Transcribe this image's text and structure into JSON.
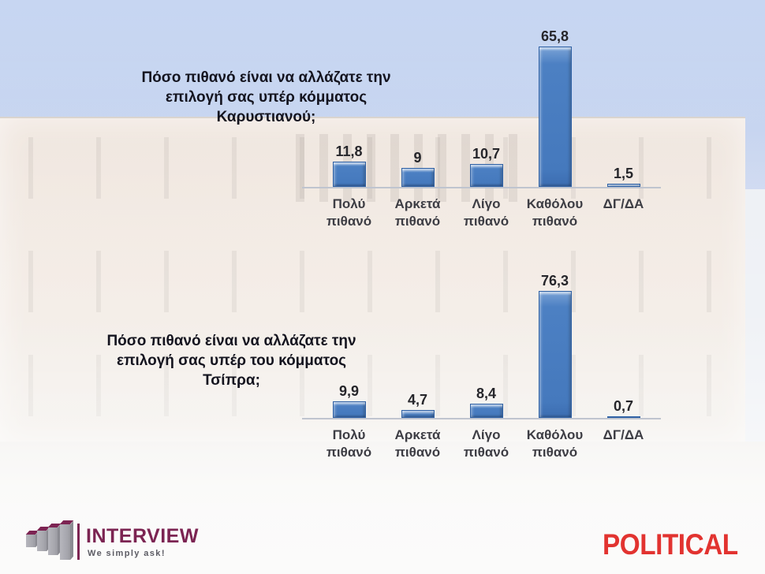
{
  "chart_data": [
    {
      "type": "bar",
      "title": "Πόσο πιθανό είναι να αλλάζατε την\nεπιλογή σας υπέρ κόμματος\nΚαρυστιανού;",
      "categories": [
        "Πολύ πιθανό",
        "Αρκετά πιθανό",
        "Λίγο πιθανό",
        "Καθόλου πιθανό",
        "ΔΓ/ΔΑ"
      ],
      "categories_display": [
        "Πολύ\nπιθανό",
        "Αρκετά\nπιθανό",
        "Λίγο\nπιθανό",
        "Καθόλου\nπιθανό",
        "ΔΓ/ΔΑ"
      ],
      "values": [
        11.8,
        9,
        10.7,
        65.8,
        1.5
      ],
      "labels": [
        "11,8",
        "9",
        "10,7",
        "65,8",
        "1,5"
      ],
      "ylim": [
        0,
        80
      ],
      "xlabel": "",
      "ylabel": "",
      "grid": false,
      "legend": false,
      "bar_color": "#4a7ec2"
    },
    {
      "type": "bar",
      "title": "Πόσο πιθανό είναι να αλλάζατε την\nεπιλογή σας υπέρ του κόμματος\nΤσίπρα;",
      "categories": [
        "Πολύ πιθανό",
        "Αρκετά πιθανό",
        "Λίγο πιθανό",
        "Καθόλου πιθανό",
        "ΔΓ/ΔΑ"
      ],
      "categories_display": [
        "Πολύ\nπιθανό",
        "Αρκετά\nπιθανό",
        "Λίγο\nπιθανό",
        "Καθόλου\nπιθανό",
        "ΔΓ/ΔΑ"
      ],
      "values": [
        9.9,
        4.7,
        8.4,
        76.3,
        0.7
      ],
      "labels": [
        "9,9",
        "4,7",
        "8,4",
        "76,3",
        "0,7"
      ],
      "ylim": [
        0,
        90
      ],
      "xlabel": "",
      "ylabel": "",
      "grid": false,
      "legend": false,
      "bar_color": "#4a7ec2"
    }
  ],
  "footer": {
    "interview": {
      "name": "INTERVIEW",
      "tagline": "We simply ask!"
    },
    "political": {
      "name": "POLITICAL"
    }
  },
  "colors": {
    "bar_fill": "#4a7ec2",
    "bar_border": "#2e60a4",
    "title_text": "#14141f",
    "value_text": "#26262b",
    "category_text": "#3d3d44",
    "axis_line": "#bfc4cf",
    "sky": "#c4d3ef",
    "interview_maroon": "#7d2453",
    "political_red": "#e23330"
  }
}
